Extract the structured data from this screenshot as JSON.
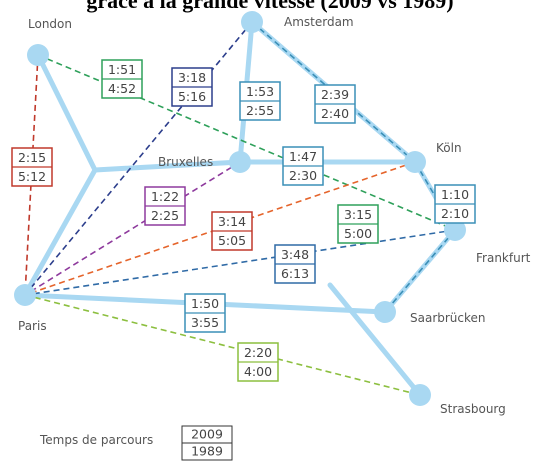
{
  "title": "grâce à la grande vitesse (2009 vs 1989)",
  "nodes": [
    {
      "label": "London"
    },
    {
      "label": "Amsterdam"
    },
    {
      "label": "Bruxelles"
    },
    {
      "label": "Köln"
    },
    {
      "label": "Frankfurt"
    },
    {
      "label": "Paris"
    },
    {
      "label": "Saarbrücken"
    },
    {
      "label": "Strasbourg"
    }
  ],
  "routes": [
    {
      "t2009": "2:15",
      "t1989": "5:12"
    },
    {
      "t2009": "1:51",
      "t1989": "4:52"
    },
    {
      "t2009": "3:18",
      "t1989": "5:16"
    },
    {
      "t2009": "1:53",
      "t1989": "2:55"
    },
    {
      "t2009": "2:39",
      "t1989": "2:40"
    },
    {
      "t2009": "1:47",
      "t1989": "2:30"
    },
    {
      "t2009": "1:22",
      "t1989": "2:25"
    },
    {
      "t2009": "3:14",
      "t1989": "5:05"
    },
    {
      "t2009": "3:15",
      "t1989": "5:00"
    },
    {
      "t2009": "1:10",
      "t1989": "2:10"
    },
    {
      "t2009": "3:48",
      "t1989": "6:13"
    },
    {
      "t2009": "1:50",
      "t1989": "3:55"
    },
    {
      "t2009": "2:20",
      "t1989": "4:00"
    }
  ],
  "legend": {
    "label": "Temps de parcours",
    "top": "2009",
    "bottom": "1989"
  }
}
